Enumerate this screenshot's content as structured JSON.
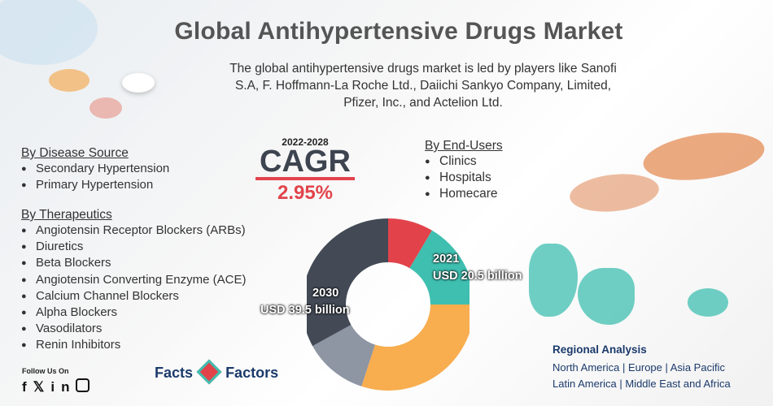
{
  "title": "Global Antihypertensive Drugs Market",
  "subtitle": "The global antihypertensive drugs market is led by players like Sanofi S.A, F. Hoffmann-La Roche Ltd., Daiichi Sankyo Company, Limited, Pfizer, Inc., and Actelion Ltd.",
  "disease_source": {
    "heading": "By Disease Source",
    "items": [
      "Secondary Hypertension",
      "Primary Hypertension"
    ]
  },
  "therapeutics": {
    "heading": "By Therapeutics",
    "items": [
      "Angiotensin Receptor Blockers (ARBs)",
      "Diuretics",
      "Beta Blockers",
      "Angiotensin Converting Enzyme (ACE)",
      "Calcium Channel Blockers",
      "Alpha Blockers",
      "Vasodilators",
      "Renin Inhibitors"
    ]
  },
  "end_users": {
    "heading": "By End-Users",
    "items": [
      "Clinics",
      "Hospitals",
      "Homecare"
    ]
  },
  "cagr": {
    "years": "2022-2028",
    "word": "CAGR",
    "value": "2.95%"
  },
  "donut": {
    "label_2021_year": "2021",
    "label_2021_value": "USD 20.5 billion",
    "label_2030_year": "2030",
    "label_2030_value": "USD 39.5 billion",
    "segments": [
      {
        "color": "#e2434b",
        "share": 0.085
      },
      {
        "color": "#3fbfb0",
        "share": 0.165
      },
      {
        "color": "#f8ad4f",
        "share": 0.3
      },
      {
        "color": "#8e95a3",
        "share": 0.12
      },
      {
        "color": "#434a56",
        "share": 0.33
      }
    ]
  },
  "regional": {
    "heading": "Regional Analysis",
    "line1": "North America | Europe | Asia Pacific",
    "line2": "Latin America | Middle East and Africa"
  },
  "follow": {
    "label": "Follow Us On",
    "icons": [
      "facebook-icon",
      "twitter-icon",
      "linkedin-icon",
      "instagram-icon"
    ]
  },
  "logo": {
    "word1": "Facts",
    "word2": "Factors"
  },
  "colors": {
    "accent_red": "#e2434b",
    "teal": "#3fbfb0",
    "navy": "#1b3a6b"
  }
}
